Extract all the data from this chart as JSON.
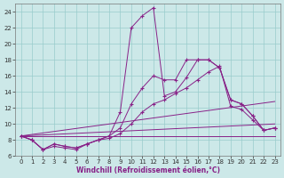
{
  "xlabel": "Windchill (Refroidissement éolien,°C)",
  "xlim": [
    -0.5,
    23.5
  ],
  "ylim": [
    6,
    25
  ],
  "xticks": [
    0,
    1,
    2,
    3,
    4,
    5,
    6,
    7,
    8,
    9,
    10,
    11,
    12,
    13,
    14,
    15,
    16,
    17,
    18,
    19,
    20,
    21,
    22,
    23
  ],
  "yticks": [
    6,
    8,
    10,
    12,
    14,
    16,
    18,
    20,
    22,
    24
  ],
  "bg_color": "#cce8e8",
  "line_color": "#882288",
  "grid_color": "#99cccc",
  "line1": {
    "x": [
      0,
      1,
      2,
      3,
      4,
      5,
      6,
      7,
      8,
      9,
      10,
      11,
      12,
      13,
      14,
      15,
      16,
      17,
      18,
      19,
      20,
      21,
      22,
      23
    ],
    "y": [
      8.5,
      8.0,
      6.8,
      7.5,
      7.2,
      7.0,
      7.5,
      8.0,
      8.5,
      11.5,
      22.0,
      23.5,
      24.5,
      13.5,
      14.0,
      15.8,
      18.0,
      18.0,
      17.0,
      13.0,
      12.5,
      11.0,
      9.2,
      9.5
    ]
  },
  "line2": {
    "x": [
      0,
      1,
      2,
      3,
      4,
      5,
      6,
      7,
      8,
      9,
      10,
      11,
      12,
      13,
      14,
      15,
      16,
      17,
      18,
      19,
      20,
      21,
      22,
      23
    ],
    "y": [
      8.5,
      8.0,
      6.8,
      7.5,
      7.2,
      7.0,
      7.5,
      8.0,
      8.5,
      9.5,
      12.5,
      14.5,
      16.0,
      15.5,
      15.5,
      18.0,
      18.0,
      18.0,
      17.0,
      13.0,
      12.5,
      11.0,
      9.2,
      9.5
    ]
  },
  "line3": {
    "x": [
      0,
      1,
      2,
      3,
      4,
      5,
      6,
      7,
      8,
      9,
      10,
      11,
      12,
      13,
      14,
      15,
      16,
      17,
      18,
      19,
      20,
      21,
      22,
      23
    ],
    "y": [
      8.5,
      8.0,
      6.8,
      7.2,
      7.0,
      6.8,
      7.5,
      8.0,
      8.2,
      8.8,
      10.0,
      11.5,
      12.5,
      13.0,
      13.8,
      14.5,
      15.5,
      16.5,
      17.2,
      12.2,
      11.8,
      10.5,
      9.2,
      9.5
    ]
  },
  "line_flat1": {
    "x": [
      0,
      23
    ],
    "y": [
      8.5,
      8.5
    ]
  },
  "line_diag1": {
    "x": [
      0,
      23
    ],
    "y": [
      8.5,
      10.0
    ]
  },
  "line_diag2": {
    "x": [
      0,
      23
    ],
    "y": [
      8.5,
      12.8
    ]
  }
}
